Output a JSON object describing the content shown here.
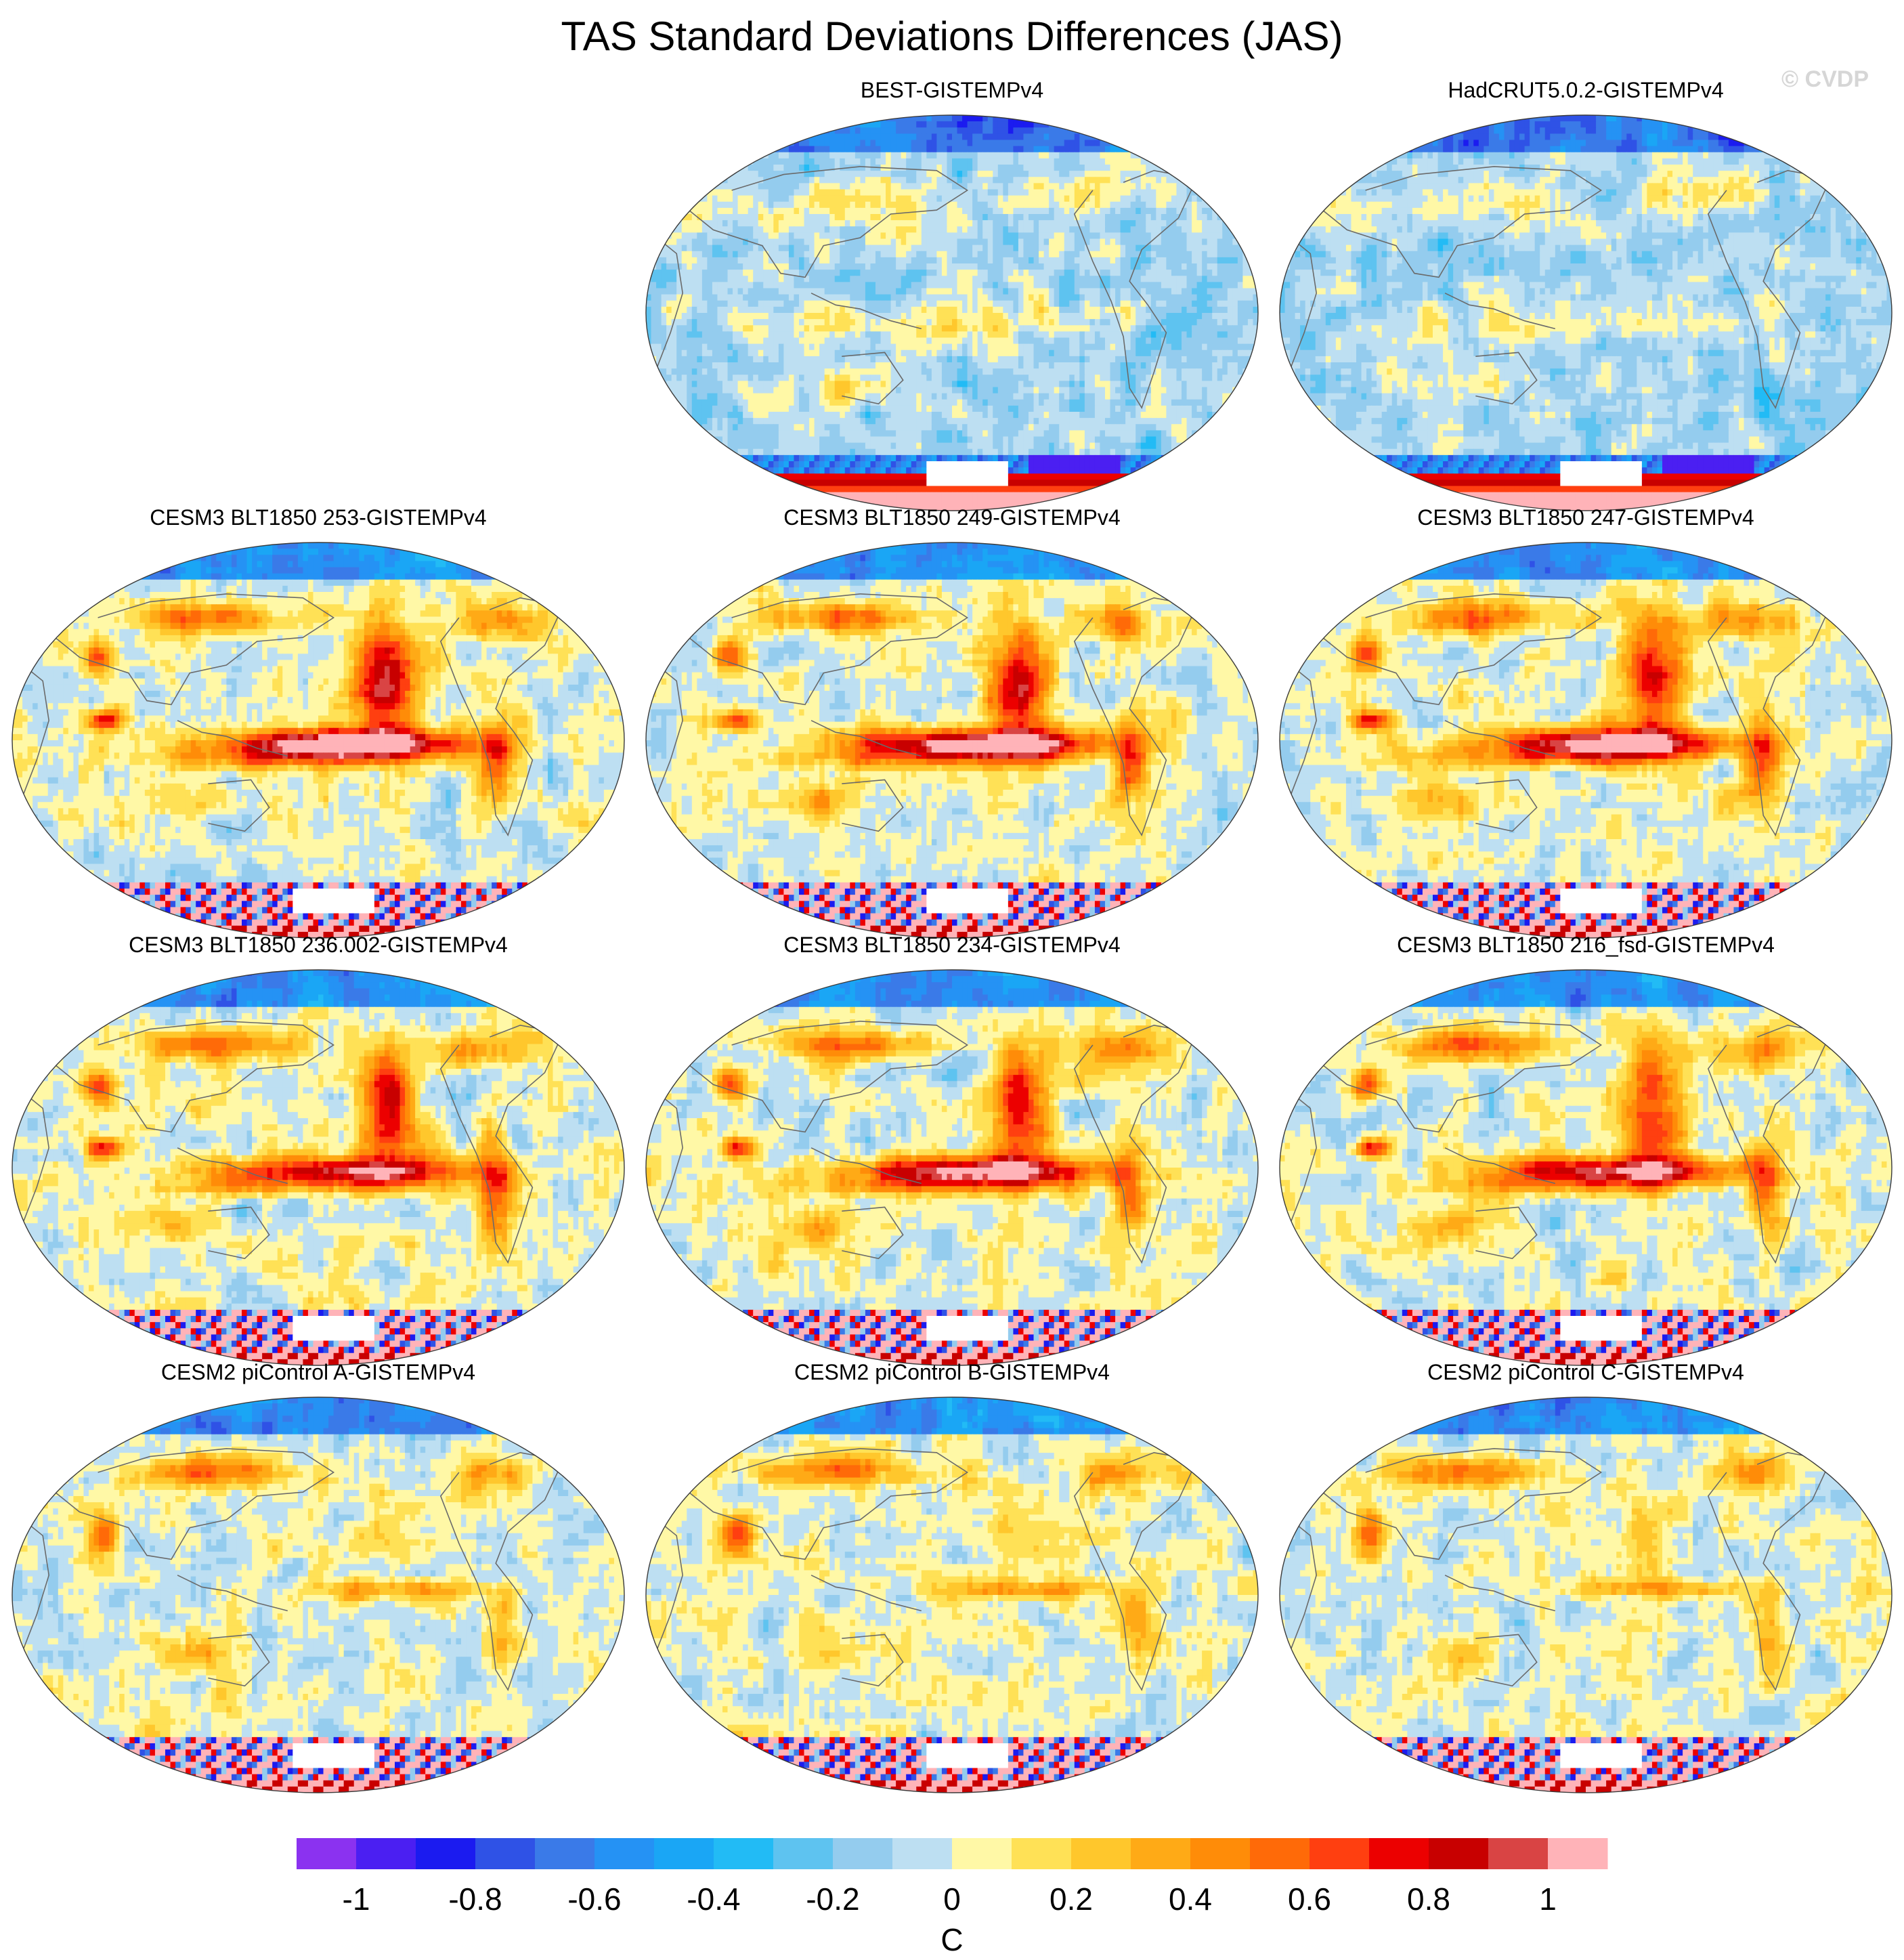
{
  "figure": {
    "title": "TAS Standard Deviations Differences (JAS)",
    "watermark": "© CVDP"
  },
  "chart_data": {
    "type": "heatmap",
    "projection": "robinson",
    "panels": [
      {
        "title": "BEST-GISTEMPv4",
        "row": 0,
        "col": 1,
        "pattern": "obs",
        "seed": 11,
        "polar": "obs",
        "amp": 0.75
      },
      {
        "title": "HadCRUT5.0.2-GISTEMPv4",
        "row": 0,
        "col": 2,
        "pattern": "obs",
        "seed": 23,
        "polar": "obs",
        "amp": 0.8
      },
      {
        "title": "CESM3 BLT1850 253-GISTEMPv4",
        "row": 1,
        "col": 0,
        "pattern": "enso",
        "seed": 31,
        "polar": "model",
        "amp": 1.15
      },
      {
        "title": "CESM3 BLT1850 249-GISTEMPv4",
        "row": 1,
        "col": 1,
        "pattern": "enso",
        "seed": 37,
        "polar": "model",
        "amp": 1.05
      },
      {
        "title": "CESM3 BLT1850 247-GISTEMPv4",
        "row": 1,
        "col": 2,
        "pattern": "enso",
        "seed": 41,
        "polar": "model",
        "amp": 1.0
      },
      {
        "title": "CESM3 BLT1850 236.002-GISTEMPv4",
        "row": 2,
        "col": 0,
        "pattern": "enso",
        "seed": 43,
        "polar": "model",
        "amp": 0.85
      },
      {
        "title": "CESM3 BLT1850 234-GISTEMPv4",
        "row": 2,
        "col": 1,
        "pattern": "enso",
        "seed": 47,
        "polar": "model",
        "amp": 0.95
      },
      {
        "title": "CESM3 BLT1850 216_fsd-GISTEMPv4",
        "row": 2,
        "col": 2,
        "pattern": "enso",
        "seed": 53,
        "polar": "model",
        "amp": 0.9
      },
      {
        "title": "CESM2 piControl A-GISTEMPv4",
        "row": 3,
        "col": 0,
        "pattern": "weak",
        "seed": 59,
        "polar": "model",
        "amp": 0.8
      },
      {
        "title": "CESM2 piControl B-GISTEMPv4",
        "row": 3,
        "col": 1,
        "pattern": "weak",
        "seed": 61,
        "polar": "model",
        "amp": 0.8
      },
      {
        "title": "CESM2 piControl C-GISTEMPv4",
        "row": 3,
        "col": 2,
        "pattern": "weak",
        "seed": 67,
        "polar": "model",
        "amp": 0.9
      }
    ],
    "colorbar": {
      "levels": [
        -1.1,
        -1.0,
        -0.9,
        -0.8,
        -0.7,
        -0.6,
        -0.5,
        -0.4,
        -0.3,
        -0.2,
        -0.1,
        0,
        0.1,
        0.2,
        0.3,
        0.4,
        0.5,
        0.6,
        0.7,
        0.8,
        0.9,
        1.0,
        1.1
      ],
      "colors": [
        "#8b32f0",
        "#4b1ff2",
        "#1b1bf0",
        "#2f52e6",
        "#3a7ae8",
        "#2592f4",
        "#1aa6f5",
        "#22bbf5",
        "#5ec3f0",
        "#94ccee",
        "#bddff2",
        "#fff8a6",
        "#ffe156",
        "#ffc72c",
        "#ffaa16",
        "#ff8c08",
        "#ff6a08",
        "#ff3f10",
        "#ec0000",
        "#c80000",
        "#d94444",
        "#ffb3b8"
      ],
      "tick_values": [
        -1,
        -0.8,
        -0.6,
        -0.4,
        -0.2,
        0,
        0.2,
        0.4,
        0.6,
        0.8,
        1
      ],
      "tick_labels": [
        "-1",
        "-0.8",
        "-0.6",
        "-0.4",
        "-0.2",
        "0",
        "0.2",
        "0.4",
        "0.6",
        "0.8",
        "1"
      ],
      "units": "C"
    },
    "missing_color": "#ffffff",
    "land_outline_color": "#6a6a6a"
  }
}
